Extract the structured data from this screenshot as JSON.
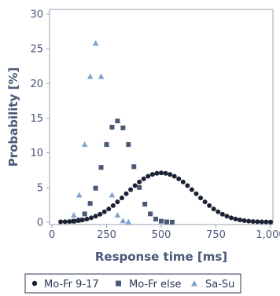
{
  "chart_data": {
    "type": "scatter",
    "xlabel": "Response time [ms]",
    "ylabel": "Probability [%]",
    "xlim": [
      0,
      1000
    ],
    "ylim": [
      0,
      30
    ],
    "x_ticks": [
      "0",
      "250",
      "500",
      "750",
      "1,000"
    ],
    "y_ticks": [
      "0",
      "5",
      "10",
      "15",
      "20",
      "25",
      "30"
    ],
    "grid": false,
    "legend_position": "bottom",
    "series": [
      {
        "name": "Mo-Fr 9-17",
        "marker": "circle",
        "color": "#1b2233",
        "points": [
          [
            40,
            0.05
          ],
          [
            60,
            0.07
          ],
          [
            80,
            0.1
          ],
          [
            100,
            0.15
          ],
          [
            120,
            0.22
          ],
          [
            140,
            0.32
          ],
          [
            160,
            0.45
          ],
          [
            180,
            0.63
          ],
          [
            200,
            0.86
          ],
          [
            220,
            1.14
          ],
          [
            240,
            1.5
          ],
          [
            260,
            1.91
          ],
          [
            280,
            2.39
          ],
          [
            300,
            2.93
          ],
          [
            320,
            3.5
          ],
          [
            340,
            4.1
          ],
          [
            360,
            4.7
          ],
          [
            380,
            5.28
          ],
          [
            400,
            5.8
          ],
          [
            420,
            6.25
          ],
          [
            440,
            6.62
          ],
          [
            460,
            6.89
          ],
          [
            480,
            7.05
          ],
          [
            500,
            7.1
          ],
          [
            520,
            7.05
          ],
          [
            540,
            6.89
          ],
          [
            560,
            6.62
          ],
          [
            580,
            6.25
          ],
          [
            600,
            5.8
          ],
          [
            620,
            5.28
          ],
          [
            640,
            4.7
          ],
          [
            660,
            4.1
          ],
          [
            680,
            3.5
          ],
          [
            700,
            2.93
          ],
          [
            720,
            2.39
          ],
          [
            740,
            1.91
          ],
          [
            760,
            1.5
          ],
          [
            780,
            1.14
          ],
          [
            800,
            0.86
          ],
          [
            820,
            0.63
          ],
          [
            840,
            0.45
          ],
          [
            860,
            0.32
          ],
          [
            880,
            0.22
          ],
          [
            900,
            0.15
          ],
          [
            920,
            0.1
          ],
          [
            940,
            0.07
          ],
          [
            960,
            0.05
          ],
          [
            980,
            0.04
          ],
          [
            1000,
            0.03
          ]
        ]
      },
      {
        "name": "Mo-Fr else",
        "marker": "square",
        "color": "#4a5878",
        "points": [
          [
            100,
            0.15
          ],
          [
            125,
            0.3
          ],
          [
            150,
            1.2
          ],
          [
            175,
            2.7
          ],
          [
            200,
            4.9
          ],
          [
            225,
            7.9
          ],
          [
            250,
            11.2
          ],
          [
            275,
            13.7
          ],
          [
            300,
            14.6
          ],
          [
            325,
            13.6
          ],
          [
            350,
            11.2
          ],
          [
            375,
            8.0
          ],
          [
            400,
            5.0
          ],
          [
            425,
            2.6
          ],
          [
            450,
            1.2
          ],
          [
            475,
            0.45
          ],
          [
            500,
            0.15
          ],
          [
            525,
            0.05
          ],
          [
            550,
            0.01
          ]
        ]
      },
      {
        "name": "Sa-Su",
        "marker": "triangle",
        "color": "#7fa3cf",
        "points": [
          [
            100,
            1.0
          ],
          [
            125,
            3.9
          ],
          [
            150,
            11.2
          ],
          [
            175,
            21.0
          ],
          [
            200,
            25.8
          ],
          [
            225,
            21.0
          ],
          [
            250,
            11.2
          ],
          [
            275,
            3.9
          ],
          [
            300,
            1.0
          ],
          [
            325,
            0.2
          ],
          [
            350,
            0.03
          ]
        ]
      }
    ]
  }
}
